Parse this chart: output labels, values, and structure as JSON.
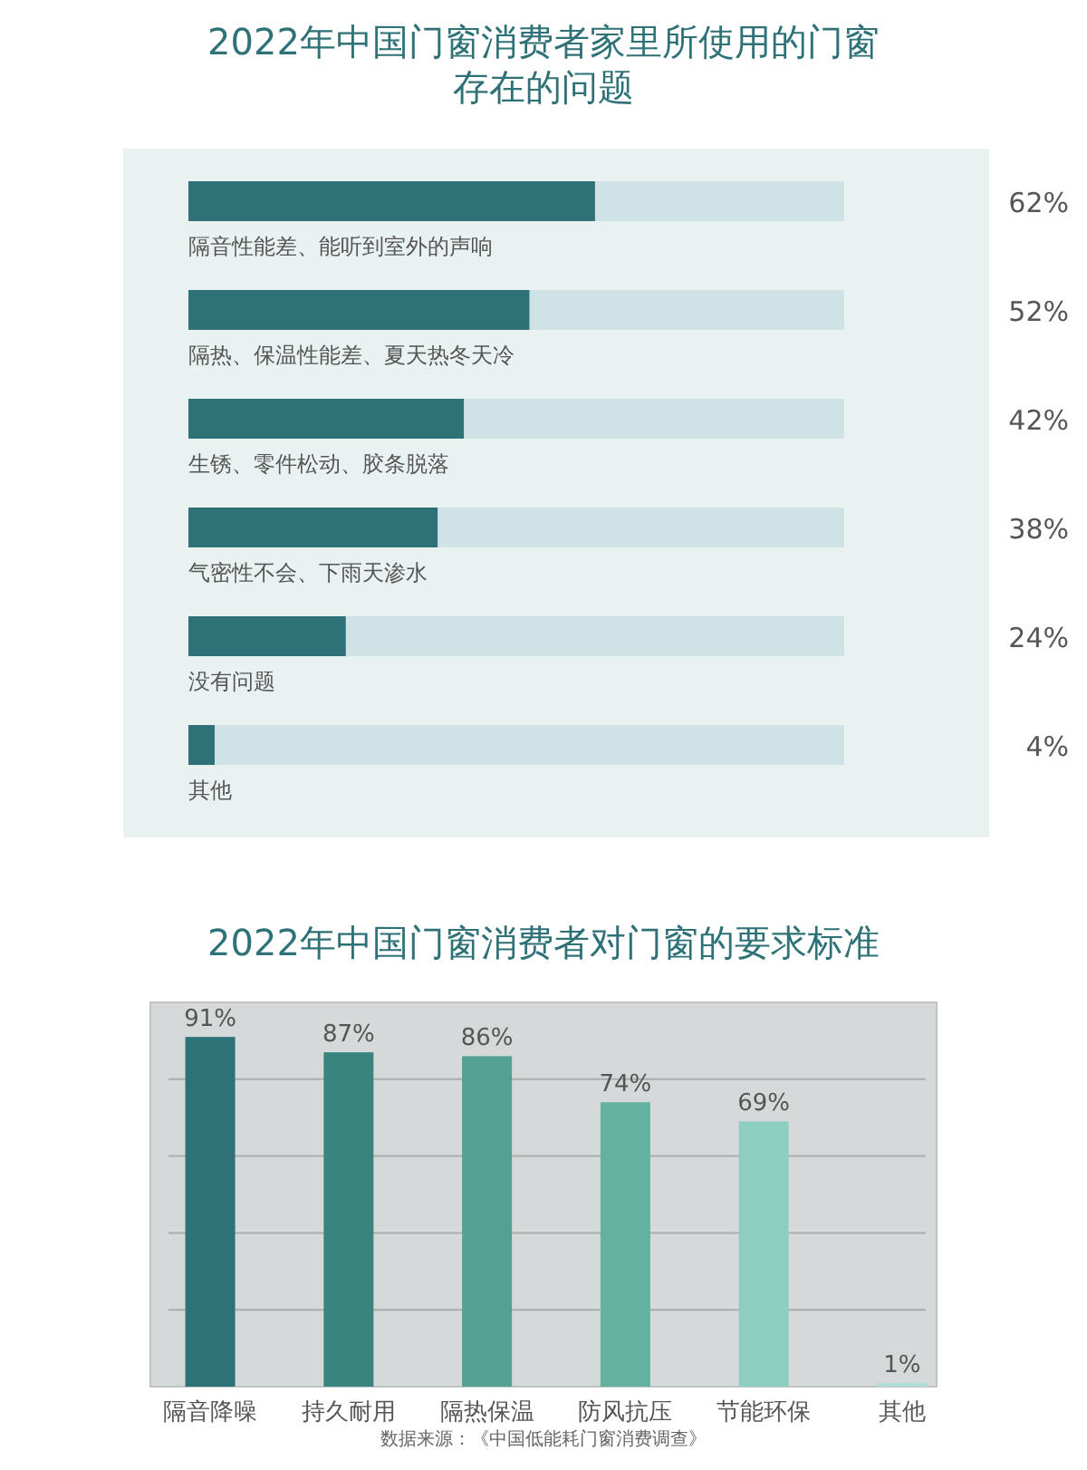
{
  "chart_data": [
    {
      "type": "bar",
      "orientation": "horizontal",
      "title": "2022年中国门窗消费者家里所使用的门窗存在的问题",
      "categories": [
        "隔音性能差、能听到室外的声响",
        "隔热、保温性能差、夏天热冬天冷",
        "生锈、零件松动、胶条脱落",
        "气密性不会、下雨天渗水",
        "没有问题",
        "其他"
      ],
      "values": [
        62,
        52,
        42,
        38,
        24,
        4
      ],
      "value_labels": [
        "62%",
        "52%",
        "42%",
        "38%",
        "24%",
        "4%"
      ],
      "color": "#2e7278",
      "xlim": [
        0,
        100
      ],
      "tick_labels": false
    },
    {
      "type": "bar",
      "title": "2022年中国门窗消费者对门窗的要求标准",
      "categories": [
        "隔音降噪",
        "持久耐用",
        "隔热保温",
        "防风抗压",
        "节能环保",
        "其他"
      ],
      "values": [
        91,
        87,
        86,
        74,
        69,
        1
      ],
      "value_labels": [
        "91%",
        "87%",
        "86%",
        "74%",
        "69%",
        "1%"
      ],
      "colors": [
        "#2e7278",
        "#3a847f",
        "#52a193",
        "#63b2a0",
        "#8ccfc0",
        "#b0dcd6"
      ],
      "ylim": [
        0,
        100
      ],
      "yticks": [
        {
          "value": 20,
          "label": null
        },
        {
          "value": 40,
          "label": null
        },
        {
          "value": 60,
          "label": null
        },
        {
          "value": 80,
          "label": null
        }
      ],
      "grid": "y",
      "tick_labels": "x",
      "annotations": [
        "数据来源：《中国低能耗门窗消费调查》"
      ]
    }
  ]
}
